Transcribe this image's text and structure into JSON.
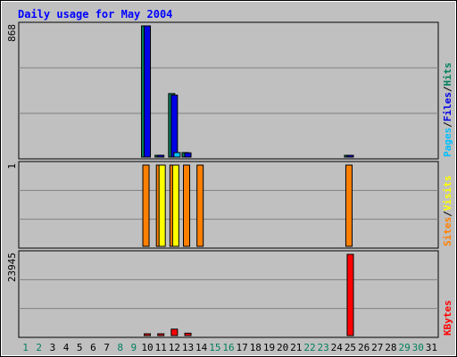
{
  "chart_data": {
    "type": "bar",
    "title": "Daily usage for May 2004",
    "days": [
      "1",
      "2",
      "3",
      "4",
      "5",
      "6",
      "7",
      "8",
      "9",
      "10",
      "11",
      "12",
      "13",
      "14",
      "15",
      "16",
      "17",
      "18",
      "19",
      "20",
      "21",
      "22",
      "23",
      "24",
      "25",
      "26",
      "27",
      "28",
      "29",
      "30",
      "31"
    ],
    "weekend_days": [
      "1",
      "2",
      "8",
      "9",
      "15",
      "16",
      "22",
      "23",
      "29",
      "30"
    ],
    "panels": {
      "hits": {
        "max_label": "868",
        "ymax": 868,
        "legend": [
          "Pages",
          "Files",
          "Hits"
        ],
        "series": [
          {
            "name": "Hits",
            "color": "#00805c",
            "values": {
              "10": 868,
              "11": 12,
              "12": 420,
              "13": 30,
              "25": 8
            }
          },
          {
            "name": "Files",
            "color": "#0000e6",
            "values": {
              "10": 868,
              "11": 12,
              "12": 410,
              "13": 28,
              "25": 6
            }
          },
          {
            "name": "Pages",
            "color": "#00c0ff",
            "values": {
              "10": 0,
              "11": 0,
              "12": 30,
              "13": 0,
              "25": 0
            }
          }
        ]
      },
      "visits": {
        "max_label": "1",
        "ymax": 1,
        "legend": [
          "Sites",
          "Visits"
        ],
        "series": [
          {
            "name": "Sites",
            "color": "#ff8000",
            "values": {
              "10": 1,
              "11": 1,
              "12": 1,
              "13": 1,
              "14": 1,
              "25": 1
            }
          },
          {
            "name": "Visits",
            "color": "#ffff00",
            "values": {
              "11": 1,
              "12": 1
            }
          }
        ]
      },
      "kbytes": {
        "max_label": "23945",
        "ymax": 23945,
        "legend": [
          "KBytes"
        ],
        "series": [
          {
            "name": "KBytes",
            "color": "#ff0000",
            "values": {
              "10": 300,
              "11": 200,
              "12": 1900,
              "13": 700,
              "25": 23945
            }
          }
        ]
      }
    },
    "colors": {
      "background": "#c0c0c0",
      "grid": "#808080",
      "title": "#0000ff",
      "weekday_label": "#000000",
      "weekend_label": "#00805c"
    }
  }
}
